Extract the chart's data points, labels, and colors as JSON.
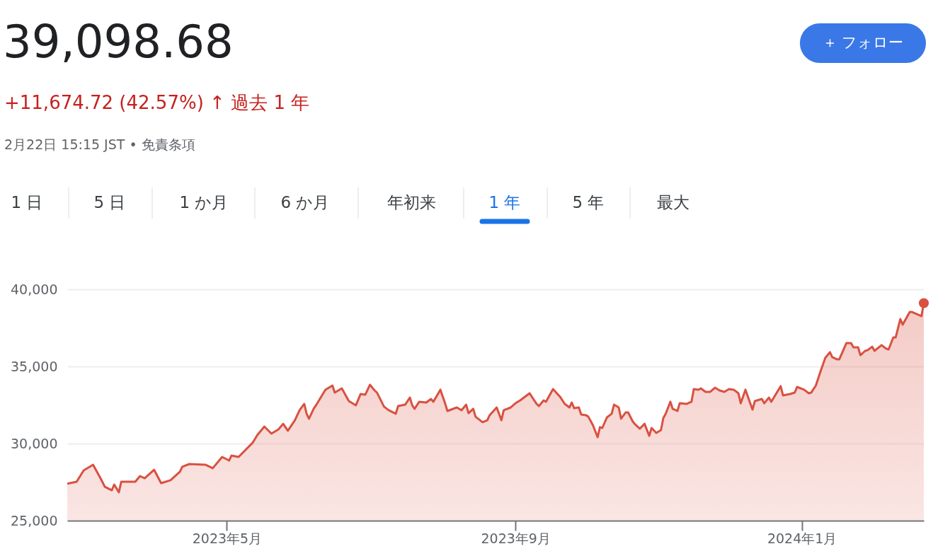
{
  "chart_data": {
    "type": "area",
    "title": "39,098.68",
    "subtitle": "+11,674.72 (42.57%) ↑ 過去 1 年",
    "annotations": [
      "2月22日 15:15 JST • 免責条項",
      "＋ フォロー",
      "1 日",
      "5 日",
      "1 か月",
      "6 か月",
      "年初来",
      "1 年",
      "5 年",
      "最大"
    ],
    "xlim": [
      "2023-02-22",
      "2024-02-22"
    ],
    "xticks": [
      {
        "value": "2023-05-01",
        "label": "2023年5月"
      },
      {
        "value": "2023-09-01",
        "label": "2023年9月"
      },
      {
        "value": "2024-01-01",
        "label": "2024年1月"
      }
    ],
    "ylim": [
      25000,
      40000
    ],
    "yticks": [
      {
        "value": 25000,
        "label": "25,000"
      },
      {
        "value": 30000,
        "label": "30,000"
      },
      {
        "value": 35000,
        "label": "35,000"
      },
      {
        "value": 40000,
        "label": "40,000"
      }
    ],
    "grid": "y",
    "series": [
      {
        "color": "#d95141",
        "x": [
          "2023-02-22",
          "2023-02-26",
          "2023-03-01",
          "2023-03-05",
          "2023-03-08",
          "2023-03-10",
          "2023-03-13",
          "2023-03-14",
          "2023-03-16",
          "2023-03-17",
          "2023-03-23",
          "2023-03-25",
          "2023-03-27",
          "2023-03-31",
          "2023-04-03",
          "2023-04-07",
          "2023-04-11",
          "2023-04-12",
          "2023-04-15",
          "2023-04-22",
          "2023-04-25",
          "2023-04-29",
          "2023-05-02",
          "2023-05-03",
          "2023-05-06",
          "2023-05-12",
          "2023-05-14",
          "2023-05-17",
          "2023-05-20",
          "2023-05-23",
          "2023-05-25",
          "2023-05-27",
          "2023-05-30",
          "2023-06-01",
          "2023-06-03",
          "2023-06-04",
          "2023-06-05",
          "2023-06-07",
          "2023-06-08",
          "2023-06-12",
          "2023-06-15",
          "2023-06-16",
          "2023-06-19",
          "2023-06-22",
          "2023-06-25",
          "2023-06-27",
          "2023-06-29",
          "2023-07-01",
          "2023-07-03",
          "2023-07-04",
          "2023-07-07",
          "2023-07-09",
          "2023-07-12",
          "2023-07-13",
          "2023-07-16",
          "2023-07-18",
          "2023-07-19",
          "2023-07-20",
          "2023-07-22",
          "2023-07-25",
          "2023-07-27",
          "2023-07-28",
          "2023-07-31",
          "2023-08-02",
          "2023-08-03",
          "2023-08-07",
          "2023-08-09",
          "2023-08-11",
          "2023-08-12",
          "2023-08-14",
          "2023-08-15",
          "2023-08-18",
          "2023-08-20",
          "2023-08-21",
          "2023-08-24",
          "2023-08-26",
          "2023-08-27",
          "2023-08-30",
          "2023-09-01",
          "2023-09-03",
          "2023-09-07",
          "2023-09-10",
          "2023-09-11",
          "2023-09-13",
          "2023-09-14",
          "2023-09-17",
          "2023-09-20",
          "2023-09-22",
          "2023-09-24",
          "2023-09-25",
          "2023-09-26",
          "2023-09-28",
          "2023-09-29",
          "2023-10-01",
          "2023-10-02",
          "2023-10-04",
          "2023-10-06",
          "2023-10-07",
          "2023-10-08",
          "2023-10-10",
          "2023-10-12",
          "2023-10-13",
          "2023-10-15",
          "2023-10-16",
          "2023-10-18",
          "2023-10-19",
          "2023-10-21",
          "2023-10-22",
          "2023-10-24",
          "2023-10-26",
          "2023-10-28",
          "2023-10-29",
          "2023-10-31",
          "2023-11-02",
          "2023-11-03",
          "2023-11-04",
          "2023-11-06",
          "2023-11-07",
          "2023-11-09",
          "2023-11-10",
          "2023-11-13",
          "2023-11-15",
          "2023-11-16",
          "2023-11-18",
          "2023-11-19",
          "2023-11-21",
          "2023-11-23",
          "2023-11-25",
          "2023-11-27",
          "2023-11-29",
          "2023-12-01",
          "2023-12-03",
          "2023-12-05",
          "2023-12-06",
          "2023-12-08",
          "2023-12-11",
          "2023-12-12",
          "2023-12-15",
          "2023-12-16",
          "2023-12-18",
          "2023-12-19",
          "2023-12-23",
          "2023-12-24",
          "2023-12-27",
          "2023-12-29",
          "2023-12-30",
          "2024-01-02",
          "2024-01-04",
          "2024-01-05",
          "2024-01-07",
          "2024-01-09",
          "2024-01-11",
          "2024-01-13",
          "2024-01-14",
          "2024-01-16",
          "2024-01-17",
          "2024-01-20",
          "2024-01-22",
          "2024-01-23",
          "2024-01-25",
          "2024-01-26",
          "2024-01-28",
          "2024-01-29",
          "2024-01-31",
          "2024-02-01",
          "2024-02-04",
          "2024-02-06",
          "2024-02-07",
          "2024-02-09",
          "2024-02-10",
          "2024-02-12",
          "2024-02-13",
          "2024-02-16",
          "2024-02-17",
          "2024-02-21",
          "2024-02-22"
        ],
        "values": [
          27390,
          27520,
          28260,
          28620,
          27800,
          27200,
          26970,
          27340,
          26840,
          27520,
          27520,
          27890,
          27750,
          28300,
          27430,
          27620,
          28170,
          28490,
          28670,
          28620,
          28400,
          29130,
          28900,
          29220,
          29130,
          30050,
          30550,
          31100,
          30640,
          30920,
          31280,
          30830,
          31510,
          32160,
          32570,
          31930,
          31610,
          32250,
          32480,
          33490,
          33760,
          33300,
          33580,
          32750,
          32480,
          33210,
          33170,
          33810,
          33440,
          33300,
          32390,
          32160,
          31930,
          32430,
          32520,
          32980,
          32480,
          32250,
          32710,
          32660,
          32890,
          32710,
          33490,
          32610,
          32110,
          32340,
          32160,
          32520,
          31970,
          32250,
          31740,
          31380,
          31510,
          31840,
          32340,
          31510,
          32160,
          32340,
          32610,
          32800,
          33260,
          32570,
          32430,
          32800,
          32710,
          33530,
          33030,
          32570,
          32340,
          32660,
          32290,
          32340,
          31880,
          31840,
          31750,
          31190,
          30410,
          31060,
          31010,
          31700,
          31930,
          32520,
          32340,
          31610,
          32020,
          32020,
          31420,
          31240,
          30960,
          31280,
          30500,
          31010,
          30690,
          30870,
          31650,
          31930,
          32710,
          32250,
          32110,
          32610,
          32570,
          32710,
          33530,
          33490,
          33580,
          33350,
          33350,
          33620,
          33440,
          33350,
          33530,
          33490,
          33260,
          32610,
          33490,
          32200,
          32750,
          32890,
          32610,
          32980,
          32710,
          33720,
          33120,
          33210,
          33300,
          33670,
          33490,
          33260,
          33300,
          33760,
          34680,
          35550,
          35920,
          35600,
          35460,
          35460,
          36510,
          36510,
          36240,
          36240,
          35730,
          36010,
          36050,
          36280,
          36010,
          36380,
          36150,
          36100,
          36880,
          36880,
          38070,
          37710,
          38530,
          38530,
          38260,
          39100
        ]
      },
      {
        "type": "scatter",
        "color": "#d95141",
        "x": [
          "2024-02-22"
        ],
        "values": [
          39100
        ]
      }
    ]
  }
}
